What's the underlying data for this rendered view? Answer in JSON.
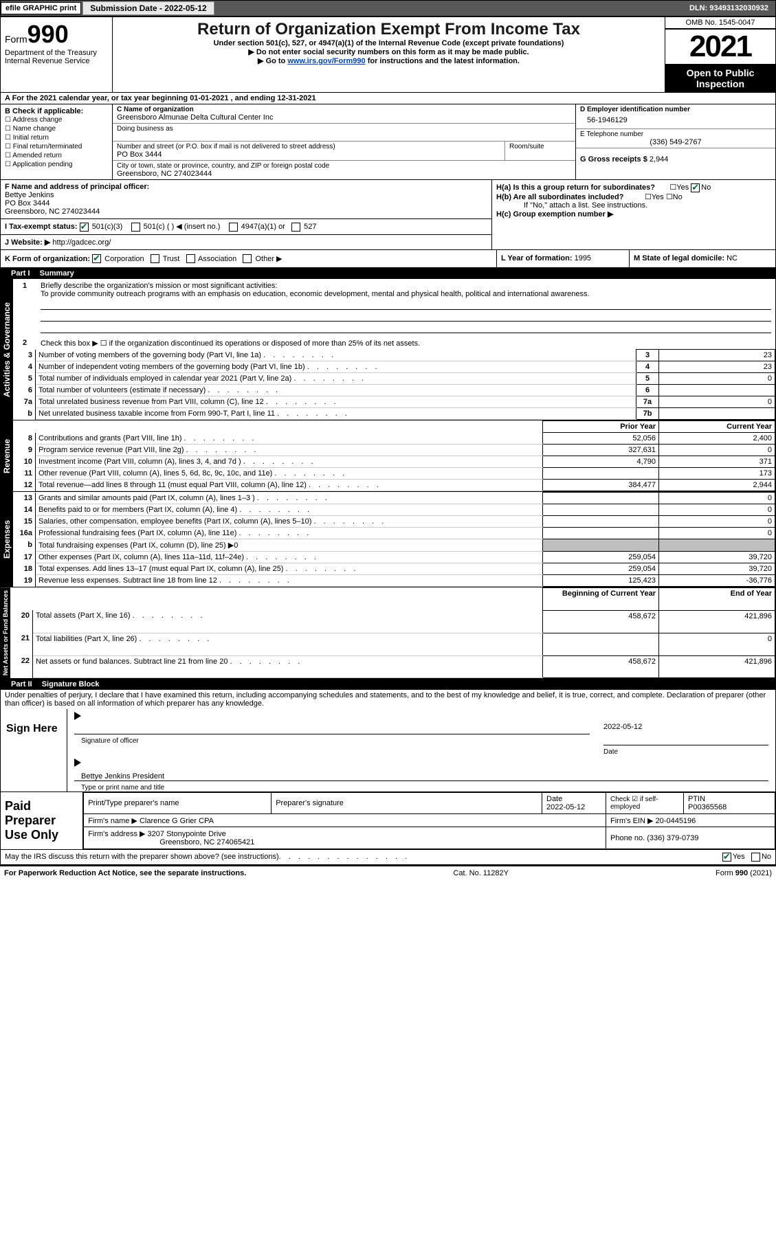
{
  "header": {
    "efile": "efile GRAPHIC print",
    "submission_label": "Submission Date - 2022-05-12",
    "dln": "DLN: 93493132030932"
  },
  "title": {
    "form": "Form",
    "num": "990",
    "dept": "Department of the Treasury",
    "irs": "Internal Revenue Service",
    "main": "Return of Organization Exempt From Income Tax",
    "sub": "Under section 501(c), 527, or 4947(a)(1) of the Internal Revenue Code (except private foundations)",
    "instr1": "▶ Do not enter social security numbers on this form as it may be made public.",
    "instr2_pre": "▶ Go to ",
    "instr2_link": "www.irs.gov/Form990",
    "instr2_post": " for instructions and the latest information.",
    "omb": "OMB No. 1545-0047",
    "year": "2021",
    "inspect": "Open to Public Inspection"
  },
  "taxyear": "A For the 2021 calendar year, or tax year beginning 01-01-2021    , and ending 12-31-2021",
  "B": {
    "h": "B Check if applicable:",
    "i": [
      "Address change",
      "Name change",
      "Initial return",
      "Final return/terminated",
      "Amended return",
      "Application pending"
    ]
  },
  "C": {
    "name_lbl": "C Name of organization",
    "name": "Greensboro Almunae Delta Cultural Center Inc",
    "dba_lbl": "Doing business as",
    "addr_lbl": "Number and street (or P.O. box if mail is not delivered to street address)",
    "room_lbl": "Room/suite",
    "addr": "PO Box 3444",
    "city_lbl": "City or town, state or province, country, and ZIP or foreign postal code",
    "city": "Greensboro, NC  274023444"
  },
  "D": {
    "lbl": "D Employer identification number",
    "val": "56-1946129"
  },
  "E": {
    "lbl": "E Telephone number",
    "val": "(336) 549-2767"
  },
  "G": {
    "lbl": "G Gross receipts $",
    "val": "2,944"
  },
  "F": {
    "lbl": "F  Name and address of principal officer:",
    "name": "Bettye Jenkins",
    "addr": "PO Box 3444",
    "city": "Greensboro, NC  274023444"
  },
  "H": {
    "a": "H(a)  Is this a group return for subordinates?",
    "b": "H(b)  Are all subordinates included?",
    "b2": "If \"No,\" attach a list. See instructions.",
    "c": "H(c)  Group exemption number ▶"
  },
  "I": {
    "lbl": "I  Tax-exempt status:",
    "opts": [
      "501(c)(3)",
      "501(c) (  ) ◀ (insert no.)",
      "4947(a)(1) or",
      "527"
    ]
  },
  "J": {
    "lbl": "J  Website: ▶",
    "val": "http://gadcec.org/"
  },
  "K": {
    "lbl": "K Form of organization:",
    "opts": [
      "Corporation",
      "Trust",
      "Association",
      "Other ▶"
    ]
  },
  "L": {
    "lbl": "L Year of formation:",
    "val": "1995"
  },
  "M": {
    "lbl": "M State of legal domicile:",
    "val": "NC"
  },
  "part1": {
    "bar": "Part I",
    "title": "Summary"
  },
  "summary": {
    "q1": "Briefly describe the organization's mission or most significant activities:",
    "mission": "To provide community outreach programs with an emphasis on education, economic development, mental and physical health, political and international awareness.",
    "q2": "Check this box ▶ ☐  if the organization discontinued its operations or disposed of more than 25% of its net assets.",
    "rows_gov": [
      {
        "n": "3",
        "t": "Number of voting members of the governing body (Part VI, line 1a)",
        "b": "3",
        "v": "23"
      },
      {
        "n": "4",
        "t": "Number of independent voting members of the governing body (Part VI, line 1b)",
        "b": "4",
        "v": "23"
      },
      {
        "n": "5",
        "t": "Total number of individuals employed in calendar year 2021 (Part V, line 2a)",
        "b": "5",
        "v": "0"
      },
      {
        "n": "6",
        "t": "Total number of volunteers (estimate if necessary)",
        "b": "6",
        "v": ""
      },
      {
        "n": "7a",
        "t": "Total unrelated business revenue from Part VIII, column (C), line 12",
        "b": "7a",
        "v": "0"
      },
      {
        "n": "b",
        "t": "Net unrelated business taxable income from Form 990-T, Part I, line 11",
        "b": "7b",
        "v": ""
      }
    ],
    "hdr_prior": "Prior Year",
    "hdr_curr": "Current Year",
    "rows_rev": [
      {
        "n": "8",
        "t": "Contributions and grants (Part VIII, line 1h)",
        "p": "52,056",
        "c": "2,400"
      },
      {
        "n": "9",
        "t": "Program service revenue (Part VIII, line 2g)",
        "p": "327,631",
        "c": "0"
      },
      {
        "n": "10",
        "t": "Investment income (Part VIII, column (A), lines 3, 4, and 7d )",
        "p": "4,790",
        "c": "371"
      },
      {
        "n": "11",
        "t": "Other revenue (Part VIII, column (A), lines 5, 6d, 8c, 9c, 10c, and 11e)",
        "p": "",
        "c": "173"
      },
      {
        "n": "12",
        "t": "Total revenue—add lines 8 through 11 (must equal Part VIII, column (A), line 12)",
        "p": "384,477",
        "c": "2,944"
      }
    ],
    "rows_exp": [
      {
        "n": "13",
        "t": "Grants and similar amounts paid (Part IX, column (A), lines 1–3 )",
        "p": "",
        "c": "0"
      },
      {
        "n": "14",
        "t": "Benefits paid to or for members (Part IX, column (A), line 4)",
        "p": "",
        "c": "0"
      },
      {
        "n": "15",
        "t": "Salaries, other compensation, employee benefits (Part IX, column (A), lines 5–10)",
        "p": "",
        "c": "0"
      },
      {
        "n": "16a",
        "t": "Professional fundraising fees (Part IX, column (A), line 11e)",
        "p": "",
        "c": "0"
      },
      {
        "n": "b",
        "t": "Total fundraising expenses (Part IX, column (D), line 25) ▶0",
        "p": "shade",
        "c": "shade"
      },
      {
        "n": "17",
        "t": "Other expenses (Part IX, column (A), lines 11a–11d, 11f–24e)",
        "p": "259,054",
        "c": "39,720"
      },
      {
        "n": "18",
        "t": "Total expenses. Add lines 13–17 (must equal Part IX, column (A), line 25)",
        "p": "259,054",
        "c": "39,720"
      },
      {
        "n": "19",
        "t": "Revenue less expenses. Subtract line 18 from line 12",
        "p": "125,423",
        "c": "-36,776"
      }
    ],
    "hdr_beg": "Beginning of Current Year",
    "hdr_end": "End of Year",
    "rows_net": [
      {
        "n": "20",
        "t": "Total assets (Part X, line 16)",
        "p": "458,672",
        "c": "421,896"
      },
      {
        "n": "21",
        "t": "Total liabilities (Part X, line 26)",
        "p": "",
        "c": "0"
      },
      {
        "n": "22",
        "t": "Net assets or fund balances. Subtract line 21 from line 20",
        "p": "458,672",
        "c": "421,896"
      }
    ]
  },
  "tabs": {
    "gov": "Activities & Governance",
    "rev": "Revenue",
    "exp": "Expenses",
    "net": "Net Assets or Fund Balances"
  },
  "part2": {
    "bar": "Part II",
    "title": "Signature Block"
  },
  "penalty": "Under penalties of perjury, I declare that I have examined this return, including accompanying schedules and statements, and to the best of my knowledge and belief, it is true, correct, and complete. Declaration of preparer (other than officer) is based on all information of which preparer has any knowledge.",
  "sign": {
    "here": "Sign Here",
    "sig_lbl": "Signature of officer",
    "date_lbl": "Date",
    "date": "2022-05-12",
    "name": "Bettye Jenkins  President",
    "name_lbl": "Type or print name and title"
  },
  "prep": {
    "here": "Paid Preparer Use Only",
    "h": [
      "Print/Type preparer's name",
      "Preparer's signature",
      "Date",
      "",
      "PTIN"
    ],
    "date": "2022-05-12",
    "check_lbl": "Check ☑ if self-employed",
    "ptin": "P00365568",
    "firm_lbl": "Firm's name   ▶",
    "firm": "Clarence G Grier CPA",
    "ein_lbl": "Firm's EIN ▶",
    "ein": "20-0445196",
    "addr_lbl": "Firm's address ▶",
    "addr": "3207 Stonypointe Drive",
    "addr2": "Greensboro, NC  274065421",
    "phone_lbl": "Phone no.",
    "phone": "(336) 379-0739"
  },
  "discuss": "May the IRS discuss this return with the preparer shown above? (see instructions)",
  "footer": {
    "l": "For Paperwork Reduction Act Notice, see the separate instructions.",
    "m": "Cat. No. 11282Y",
    "r": "Form 990 (2021)"
  }
}
